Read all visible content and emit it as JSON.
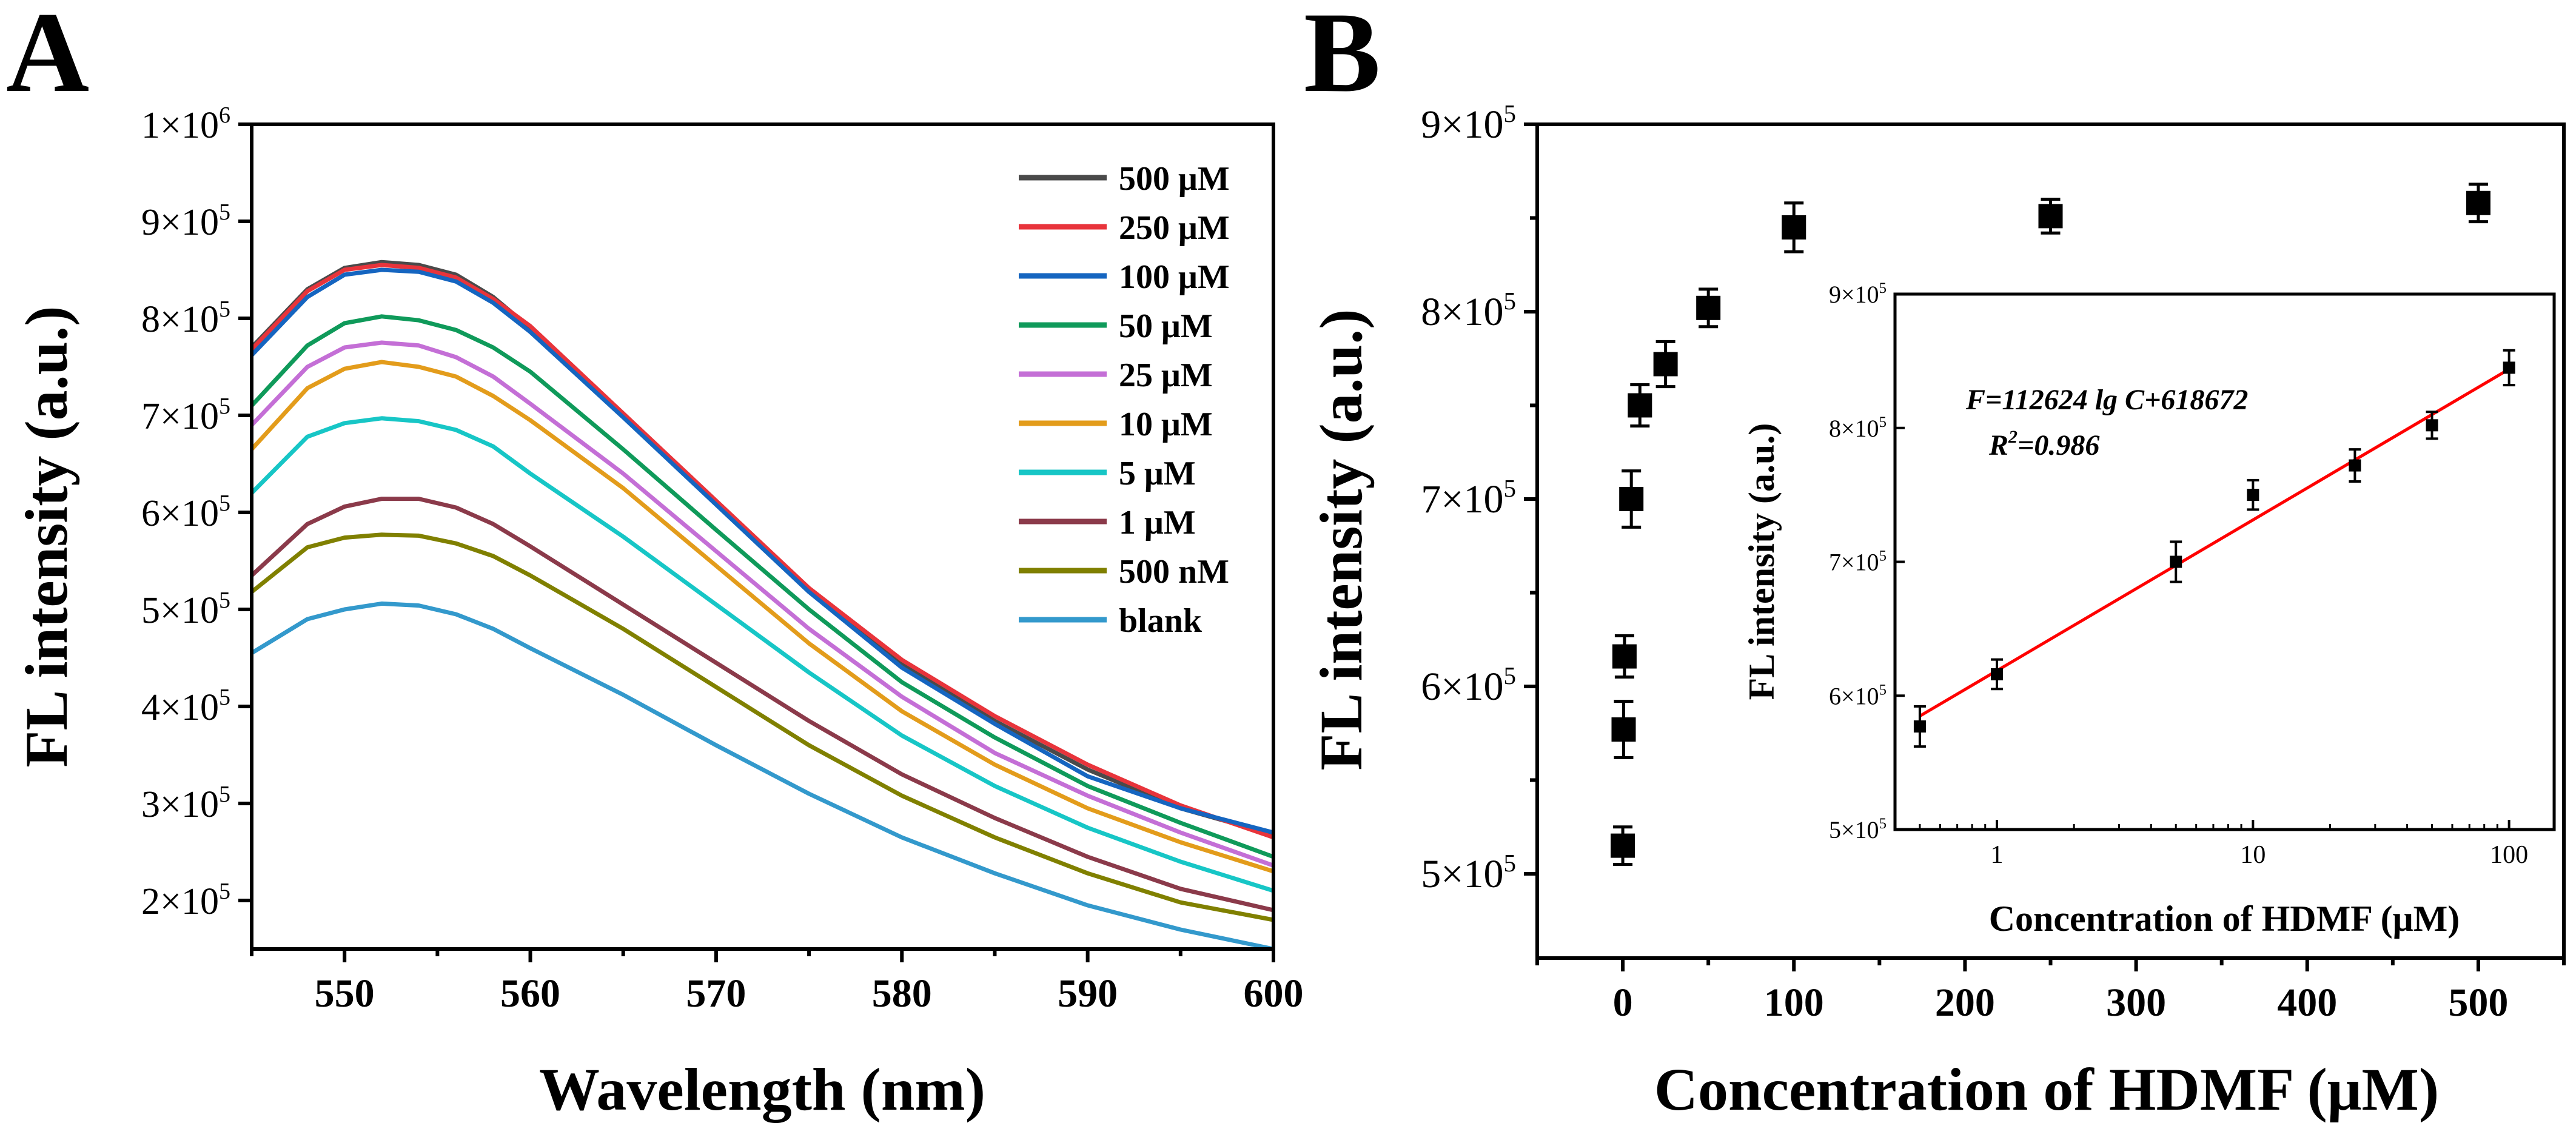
{
  "chart_data": [
    {
      "panel_label": "A",
      "type": "line",
      "xlabel": "Wavelength (nm)",
      "ylabel": "FL intensity (a.u.)",
      "xlim": [
        545,
        600
      ],
      "ylim": [
        150000,
        1000000
      ],
      "xticks": [
        550,
        560,
        570,
        580,
        590,
        600
      ],
      "yticks": [
        {
          "value": 200000,
          "label": "2×10",
          "exp": "5"
        },
        {
          "value": 300000,
          "label": "3×10",
          "exp": "5"
        },
        {
          "value": 400000,
          "label": "4×10",
          "exp": "5"
        },
        {
          "value": 500000,
          "label": "5×10",
          "exp": "5"
        },
        {
          "value": 600000,
          "label": "6×10",
          "exp": "5"
        },
        {
          "value": 700000,
          "label": "7×10",
          "exp": "5"
        },
        {
          "value": 800000,
          "label": "8×10",
          "exp": "5"
        },
        {
          "value": 900000,
          "label": "9×10",
          "exp": "5"
        },
        {
          "value": 1000000,
          "label": "1×10",
          "exp": "6"
        }
      ],
      "x": [
        545,
        548,
        550,
        552,
        554,
        556,
        558,
        560,
        565,
        570,
        575,
        580,
        585,
        590,
        595,
        600
      ],
      "series": [
        {
          "name": "500 μM",
          "color": "#4a4a4a",
          "values": [
            770000,
            830000,
            852000,
            858000,
            855000,
            845000,
            822000,
            790000,
            700000,
            610000,
            520000,
            445000,
            385000,
            335000,
            295000,
            268000
          ]
        },
        {
          "name": "250 μM",
          "color": "#e8343b",
          "values": [
            768000,
            828000,
            850000,
            855000,
            852000,
            842000,
            820000,
            792000,
            702000,
            612000,
            522000,
            448000,
            390000,
            340000,
            298000,
            265000
          ]
        },
        {
          "name": "100 μM",
          "color": "#1565c0",
          "values": [
            762000,
            822000,
            845000,
            850000,
            848000,
            838000,
            816000,
            786000,
            698000,
            608000,
            518000,
            440000,
            382000,
            328000,
            295000,
            270000
          ]
        },
        {
          "name": "50 μM",
          "color": "#0f9a5a",
          "values": [
            710000,
            772000,
            795000,
            802000,
            798000,
            788000,
            770000,
            745000,
            665000,
            582000,
            500000,
            425000,
            368000,
            318000,
            280000,
            245000
          ]
        },
        {
          "name": "25 μM",
          "color": "#c46fd6",
          "values": [
            690000,
            750000,
            770000,
            775000,
            772000,
            760000,
            740000,
            712000,
            640000,
            560000,
            480000,
            410000,
            352000,
            308000,
            270000,
            236000
          ]
        },
        {
          "name": "10 μM",
          "color": "#e39c1b",
          "values": [
            665000,
            728000,
            748000,
            755000,
            750000,
            740000,
            720000,
            695000,
            625000,
            545000,
            465000,
            395000,
            340000,
            295000,
            260000,
            230000
          ]
        },
        {
          "name": "5 μM",
          "color": "#17c6c6",
          "values": [
            620000,
            678000,
            692000,
            697000,
            694000,
            685000,
            668000,
            640000,
            575000,
            505000,
            435000,
            370000,
            318000,
            275000,
            240000,
            210000
          ]
        },
        {
          "name": "1 μM",
          "color": "#8b3a4a",
          "values": [
            535000,
            588000,
            606000,
            614000,
            614000,
            605000,
            588000,
            565000,
            505000,
            445000,
            385000,
            330000,
            285000,
            245000,
            212000,
            190000
          ]
        },
        {
          "name": "500 nM",
          "color": "#808000",
          "values": [
            518000,
            564000,
            574000,
            577000,
            576000,
            568000,
            555000,
            535000,
            480000,
            420000,
            360000,
            308000,
            265000,
            228000,
            198000,
            180000
          ]
        },
        {
          "name": "blank",
          "color": "#3399cc",
          "values": [
            455000,
            490000,
            500000,
            506000,
            504000,
            495000,
            480000,
            460000,
            412000,
            360000,
            310000,
            265000,
            228000,
            195000,
            170000,
            150000
          ]
        }
      ]
    },
    {
      "panel_label": "B",
      "type": "scatter",
      "xlabel": "Concentration of HDMF (μM)",
      "ylabel": "FL intensity (a.u.)",
      "xlim": [
        -50,
        550
      ],
      "ylim": [
        455000,
        900000
      ],
      "xticks": [
        0,
        100,
        200,
        300,
        400,
        500
      ],
      "yticks": [
        {
          "value": 500000,
          "label": "5×10",
          "exp": "5"
        },
        {
          "value": 600000,
          "label": "6×10",
          "exp": "5"
        },
        {
          "value": 700000,
          "label": "7×10",
          "exp": "5"
        },
        {
          "value": 800000,
          "label": "8×10",
          "exp": "5"
        },
        {
          "value": 900000,
          "label": "9×10",
          "exp": "5"
        }
      ],
      "points": [
        {
          "x": 0,
          "y": 515000,
          "err": 10000
        },
        {
          "x": 0.5,
          "y": 577000,
          "err": 15000
        },
        {
          "x": 1,
          "y": 616000,
          "err": 11000
        },
        {
          "x": 5,
          "y": 700000,
          "err": 15000
        },
        {
          "x": 10,
          "y": 750000,
          "err": 11000
        },
        {
          "x": 25,
          "y": 772000,
          "err": 12000
        },
        {
          "x": 50,
          "y": 802000,
          "err": 10000
        },
        {
          "x": 100,
          "y": 845000,
          "err": 13000
        },
        {
          "x": 250,
          "y": 851000,
          "err": 9000
        },
        {
          "x": 500,
          "y": 858000,
          "err": 10000
        }
      ]
    },
    {
      "panel_label": "B-inset",
      "type": "scatter",
      "xscale": "log",
      "xlabel": "Concentration of HDMF (μM)",
      "ylabel": "FL intensity (a.u.)",
      "xlim": [
        0.4,
        150
      ],
      "ylim": [
        500000,
        900000
      ],
      "xticks": [
        1,
        10,
        100
      ],
      "yticks": [
        {
          "value": 500000,
          "label": "5×10",
          "exp": "5"
        },
        {
          "value": 600000,
          "label": "6×10",
          "exp": "5"
        },
        {
          "value": 700000,
          "label": "7×10",
          "exp": "5"
        },
        {
          "value": 800000,
          "label": "8×10",
          "exp": "5"
        },
        {
          "value": 900000,
          "label": "9×10",
          "exp": "5"
        }
      ],
      "points": [
        {
          "x": 0.5,
          "y": 577000,
          "err": 15000
        },
        {
          "x": 1,
          "y": 616000,
          "err": 11000
        },
        {
          "x": 5,
          "y": 700000,
          "err": 15000
        },
        {
          "x": 10,
          "y": 750000,
          "err": 11000
        },
        {
          "x": 25,
          "y": 772000,
          "err": 12000
        },
        {
          "x": 50,
          "y": 802000,
          "err": 10000
        },
        {
          "x": 100,
          "y": 845000,
          "err": 13000
        }
      ],
      "fit": {
        "slope": 112624,
        "intercept": 618672,
        "x_range": [
          0.5,
          100
        ],
        "color": "#ff0000"
      },
      "equation": "F=112624 lg C+618672",
      "r2_label": "R",
      "r2_exp": "2",
      "r2_value": "=0.986"
    }
  ]
}
